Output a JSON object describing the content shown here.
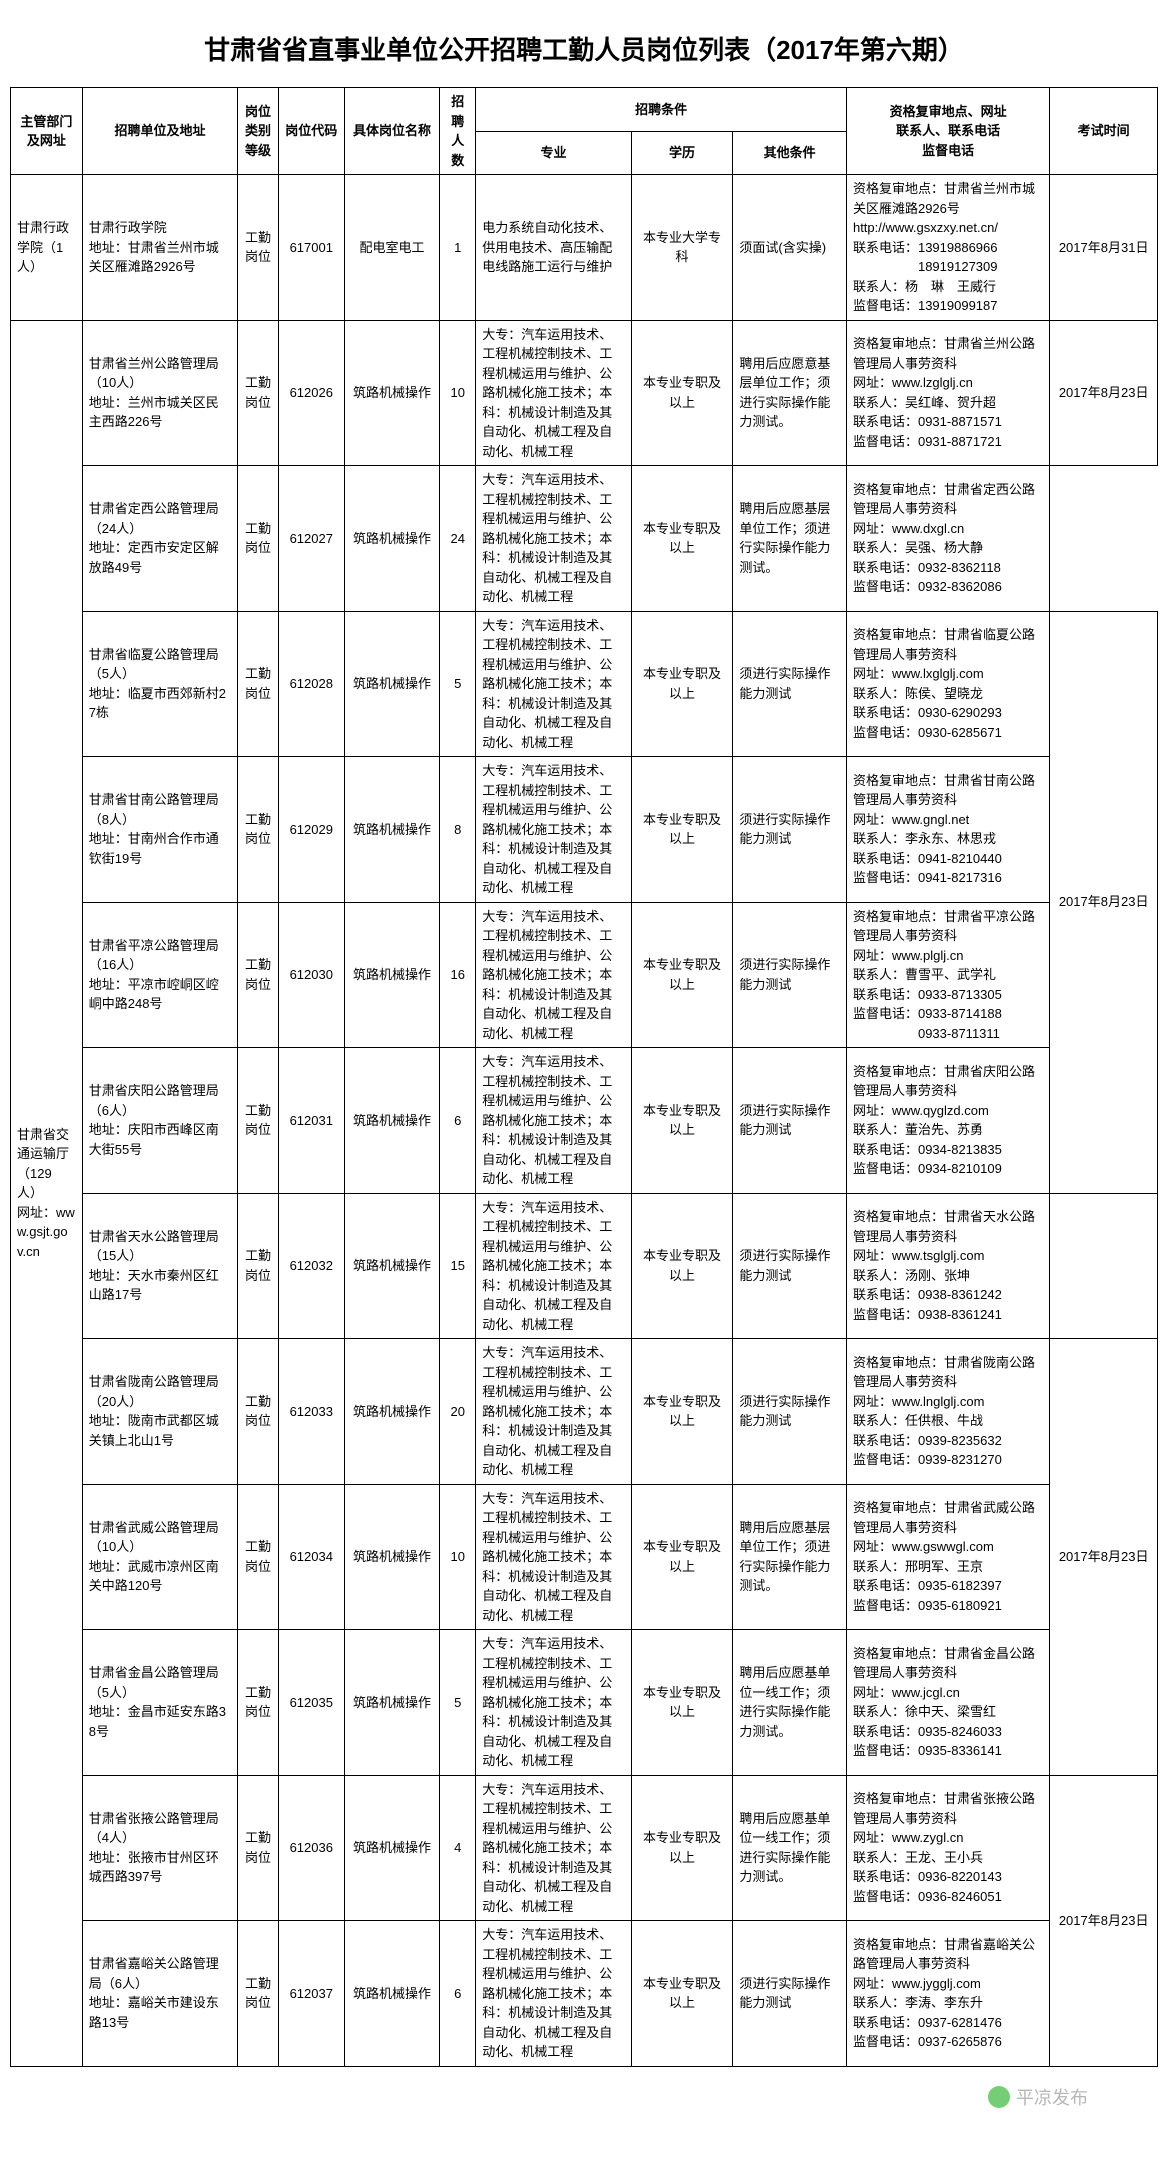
{
  "title": "甘肃省省直事业单位公开招聘工勤人员岗位列表（2017年第六期）",
  "watermark": "平凉发布",
  "headers": {
    "dept": "主管部门及网址",
    "unit": "招聘单位及地址",
    "type": "岗位类别等级",
    "code": "岗位代码",
    "job": "具体岗位名称",
    "num": "招聘人数",
    "cond": "招聘条件",
    "major": "专业",
    "edu": "学历",
    "other": "其他条件",
    "contact": "资格复审地点、网址\n联系人、联系电话\n监督电话",
    "exam": "考试时间"
  },
  "dept1": {
    "name": "甘肃行政学院（1人）",
    "unit": "甘肃行政学院\n地址：甘肃省兰州市城关区雁滩路2926号",
    "type": "工勤岗位",
    "code": "617001",
    "job": "配电室电工",
    "num": "1",
    "major": "电力系统自动化技术、供用电技术、高压输配电线路施工运行与维护",
    "edu": "本专业大学专科",
    "other": "须面试(含实操)",
    "contact": "资格复审地点：甘肃省兰州市城关区雁滩路2926号\nhttp://www.gsxzxy.net.cn/\n联系电话：13919886966\n　　　　　18919127309\n联系人：杨　琳　王威行\n监督电话：13919099187",
    "exam": "2017年8月31日"
  },
  "dept2": {
    "name": "甘肃省交通运输厅（129人）\n网址：www.gsjt.gov.cn",
    "rows": [
      {
        "unit": "甘肃省兰州公路管理局（10人）\n地址：兰州市城关区民主西路226号",
        "type": "工勤岗位",
        "code": "612026",
        "job": "筑路机械操作",
        "num": "10",
        "major": "大专：汽车运用技术、工程机械控制技术、工程机械运用与维护、公路机械化施工技术；本科：机械设计制造及其自动化、机械工程及自动化、机械工程",
        "edu": "本专业专职及以上",
        "other": "聘用后应愿意基层单位工作；须进行实际操作能力测试。",
        "contact": "资格复审地点：甘肃省兰州公路管理局人事劳资科\n网址：www.lzglglj.cn\n联系人：吴红峰、贺升超\n联系电话：0931-8871571\n监督电话：0931-8871721",
        "exam": "2017年8月23日",
        "examSpan": 1
      },
      {
        "unit": "甘肃省定西公路管理局（24人）\n地址：定西市安定区解放路49号",
        "type": "工勤岗位",
        "code": "612027",
        "job": "筑路机械操作",
        "num": "24",
        "major": "大专：汽车运用技术、工程机械控制技术、工程机械运用与维护、公路机械化施工技术；本科：机械设计制造及其自动化、机械工程及自动化、机械工程",
        "edu": "本专业专职及以上",
        "other": "聘用后应愿基层单位工作；须进行实际操作能力测试。",
        "contact": "资格复审地点：甘肃省定西公路管理局人事劳资科\n网址：www.dxgl.cn\n联系人：吴强、杨大静\n联系电话：0932-8362118\n监督电话：0932-8362086",
        "exam": "",
        "examSpan": 0
      },
      {
        "unit": "甘肃省临夏公路管理局（5人）\n地址：临夏市西郊新村27栋",
        "type": "工勤岗位",
        "code": "612028",
        "job": "筑路机械操作",
        "num": "5",
        "major": "大专：汽车运用技术、工程机械控制技术、工程机械运用与维护、公路机械化施工技术；本科：机械设计制造及其自动化、机械工程及自动化、机械工程",
        "edu": "本专业专职及以上",
        "other": "须进行实际操作能力测试",
        "contact": "资格复审地点：甘肃省临夏公路管理局人事劳资科\n网址：www.lxglglj.com\n联系人：陈侯、望晓龙\n联系电话：0930-6290293\n监督电话：0930-6285671",
        "exam": "2017年8月23日",
        "examSpan": 4
      },
      {
        "unit": "甘肃省甘南公路管理局（8人）\n地址：甘南州合作市通钦街19号",
        "type": "工勤岗位",
        "code": "612029",
        "job": "筑路机械操作",
        "num": "8",
        "major": "大专：汽车运用技术、工程机械控制技术、工程机械运用与维护、公路机械化施工技术；本科：机械设计制造及其自动化、机械工程及自动化、机械工程",
        "edu": "本专业专职及以上",
        "other": "须进行实际操作能力测试",
        "contact": "资格复审地点：甘肃省甘南公路管理局人事劳资科\n网址：www.gngl.net\n联系人：李永东、林思戎\n联系电话：0941-8210440\n监督电话：0941-8217316",
        "exam": "",
        "examSpan": 0
      },
      {
        "unit": "甘肃省平凉公路管理局（16人）\n地址：平凉市崆峒区崆峒中路248号",
        "type": "工勤岗位",
        "code": "612030",
        "job": "筑路机械操作",
        "num": "16",
        "major": "大专：汽车运用技术、工程机械控制技术、工程机械运用与维护、公路机械化施工技术；本科：机械设计制造及其自动化、机械工程及自动化、机械工程",
        "edu": "本专业专职及以上",
        "other": "须进行实际操作能力测试",
        "contact": "资格复审地点：甘肃省平凉公路管理局人事劳资科\n网址：www.plglj.cn\n联系人：曹雪平、武学礼\n联系电话：0933-8713305\n监督电话：0933-8714188\n　　　　　0933-8711311",
        "exam": "",
        "examSpan": 0
      },
      {
        "unit": "甘肃省庆阳公路管理局（6人）\n地址：庆阳市西峰区南大街55号",
        "type": "工勤岗位",
        "code": "612031",
        "job": "筑路机械操作",
        "num": "6",
        "major": "大专：汽车运用技术、工程机械控制技术、工程机械运用与维护、公路机械化施工技术；本科：机械设计制造及其自动化、机械工程及自动化、机械工程",
        "edu": "本专业专职及以上",
        "other": "须进行实际操作能力测试",
        "contact": "资格复审地点：甘肃省庆阳公路管理局人事劳资科\n网址：www.qyglzd.com\n联系人：董治先、苏勇\n联系电话：0934-8213835\n监督电话：0934-8210109",
        "exam": "",
        "examSpan": 0
      },
      {
        "unit": "甘肃省天水公路管理局（15人）\n地址：天水市秦州区红山路17号",
        "type": "工勤岗位",
        "code": "612032",
        "job": "筑路机械操作",
        "num": "15",
        "major": "大专：汽车运用技术、工程机械控制技术、工程机械运用与维护、公路机械化施工技术；本科：机械设计制造及其自动化、机械工程及自动化、机械工程",
        "edu": "本专业专职及以上",
        "other": "须进行实际操作能力测试",
        "contact": "资格复审地点：甘肃省天水公路管理局人事劳资科\n网址：www.tsglglj.com\n联系人：汤刚、张坤\n联系电话：0938-8361242\n监督电话：0938-8361241",
        "exam": "",
        "examSpan": 1
      },
      {
        "unit": "甘肃省陇南公路管理局（20人）\n地址：陇南市武都区城关镇上北山1号",
        "type": "工勤岗位",
        "code": "612033",
        "job": "筑路机械操作",
        "num": "20",
        "major": "大专：汽车运用技术、工程机械控制技术、工程机械运用与维护、公路机械化施工技术；本科：机械设计制造及其自动化、机械工程及自动化、机械工程",
        "edu": "本专业专职及以上",
        "other": "须进行实际操作能力测试",
        "contact": "资格复审地点：甘肃省陇南公路管理局人事劳资科\n网址：www.lnglglj.com\n联系人：任供根、牛战\n联系电话：0939-8235632\n监督电话：0939-8231270",
        "exam": "2017年8月23日",
        "examSpan": 3
      },
      {
        "unit": "甘肃省武威公路管理局（10人）\n地址：武威市凉州区南关中路120号",
        "type": "工勤岗位",
        "code": "612034",
        "job": "筑路机械操作",
        "num": "10",
        "major": "大专：汽车运用技术、工程机械控制技术、工程机械运用与维护、公路机械化施工技术；本科：机械设计制造及其自动化、机械工程及自动化、机械工程",
        "edu": "本专业专职及以上",
        "other": "聘用后应愿基层单位工作；须进行实际操作能力测试。",
        "contact": "资格复审地点：甘肃省武威公路管理局人事劳资科\n网址：www.gswwgl.com\n联系人：邢明军、王京\n联系电话：0935-6182397\n监督电话：0935-6180921",
        "exam": "",
        "examSpan": 0
      },
      {
        "unit": "甘肃省金昌公路管理局（5人）\n地址：金昌市延安东路38号",
        "type": "工勤岗位",
        "code": "612035",
        "job": "筑路机械操作",
        "num": "5",
        "major": "大专：汽车运用技术、工程机械控制技术、工程机械运用与维护、公路机械化施工技术；本科：机械设计制造及其自动化、机械工程及自动化、机械工程",
        "edu": "本专业专职及以上",
        "other": "聘用后应愿基单位一线工作；须进行实际操作能力测试。",
        "contact": "资格复审地点：甘肃省金昌公路管理局人事劳资科\n网址：www.jcgl.cn\n联系人：徐中天、梁雪红\n联系电话：0935-8246033\n监督电话：0935-8336141",
        "exam": "",
        "examSpan": 0
      },
      {
        "unit": "甘肃省张掖公路管理局（4人）\n地址：张掖市甘州区环城西路397号",
        "type": "工勤岗位",
        "code": "612036",
        "job": "筑路机械操作",
        "num": "4",
        "major": "大专：汽车运用技术、工程机械控制技术、工程机械运用与维护、公路机械化施工技术；本科：机械设计制造及其自动化、机械工程及自动化、机械工程",
        "edu": "本专业专职及以上",
        "other": "聘用后应愿基单位一线工作；须进行实际操作能力测试。",
        "contact": "资格复审地点：甘肃省张掖公路管理局人事劳资科\n网址：www.zygl.cn\n联系人：王龙、王小兵\n联系电话：0936-8220143\n监督电话：0936-8246051",
        "exam": "2017年8月23日",
        "examSpan": 2
      },
      {
        "unit": "甘肃省嘉峪关公路管理局（6人）\n地址：嘉峪关市建设东路13号",
        "type": "工勤岗位",
        "code": "612037",
        "job": "筑路机械操作",
        "num": "6",
        "major": "大专：汽车运用技术、工程机械控制技术、工程机械运用与维护、公路机械化施工技术；本科：机械设计制造及其自动化、机械工程及自动化、机械工程",
        "edu": "本专业专职及以上",
        "other": "须进行实际操作能力测试",
        "contact": "资格复审地点：甘肃省嘉峪关公路管理局人事劳资科\n网址：www.jygglj.com\n联系人：李涛、李东升\n联系电话：0937-6281476\n监督电话：0937-6265876",
        "exam": "",
        "examSpan": 0
      }
    ]
  }
}
